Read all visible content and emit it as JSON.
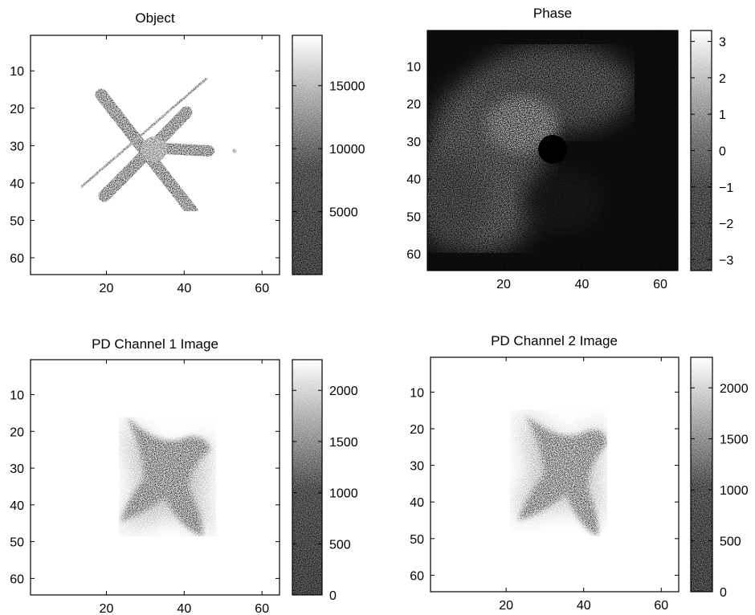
{
  "figure": {
    "panels": [
      {
        "id": "object",
        "title": "Object",
        "x_ticks": [
          20,
          40,
          60
        ],
        "y_ticks": [
          10,
          20,
          30,
          40,
          50,
          60
        ],
        "colorbar": {
          "min": 0,
          "max": 19000,
          "ticks": [
            5000,
            10000,
            15000
          ]
        }
      },
      {
        "id": "phase",
        "title": "Phase",
        "x_ticks": [
          20,
          40,
          60
        ],
        "y_ticks": [
          10,
          20,
          30,
          40,
          50,
          60
        ],
        "colorbar": {
          "min": -3.3,
          "max": 3.3,
          "ticks": [
            3,
            2,
            1,
            0,
            -1,
            -2,
            -3
          ]
        }
      },
      {
        "id": "pd1",
        "title": "PD Channel 1 Image",
        "x_ticks": [
          20,
          40,
          60
        ],
        "y_ticks": [
          10,
          20,
          30,
          40,
          50,
          60
        ],
        "colorbar": {
          "min": 0,
          "max": 2300,
          "ticks": [
            2000,
            1500,
            1000,
            500,
            0
          ]
        }
      },
      {
        "id": "pd2",
        "title": "PD Channel 2 Image",
        "x_ticks": [
          20,
          40,
          60
        ],
        "y_ticks": [
          10,
          20,
          30,
          40,
          50,
          60
        ],
        "colorbar": {
          "min": 0,
          "max": 2300,
          "ticks": [
            2000,
            1500,
            1000,
            500,
            0
          ]
        }
      }
    ]
  },
  "chart_data": [
    {
      "type": "heatmap",
      "title": "Object",
      "xlim": [
        1,
        64
      ],
      "ylim": [
        64,
        1
      ],
      "colormap": "gray",
      "colorbar_range": [
        0,
        19000
      ]
    },
    {
      "type": "heatmap",
      "title": "Phase",
      "xlim": [
        1,
        64
      ],
      "ylim": [
        64,
        1
      ],
      "colormap": "gray",
      "colorbar_range": [
        -3.3,
        3.3
      ]
    },
    {
      "type": "heatmap",
      "title": "PD Channel 1 Image",
      "xlim": [
        1,
        64
      ],
      "ylim": [
        64,
        1
      ],
      "colormap": "gray",
      "colorbar_range": [
        0,
        2300
      ]
    },
    {
      "type": "heatmap",
      "title": "PD Channel 2 Image",
      "xlim": [
        1,
        64
      ],
      "ylim": [
        64,
        1
      ],
      "colormap": "gray",
      "colorbar_range": [
        0,
        2300
      ]
    }
  ]
}
